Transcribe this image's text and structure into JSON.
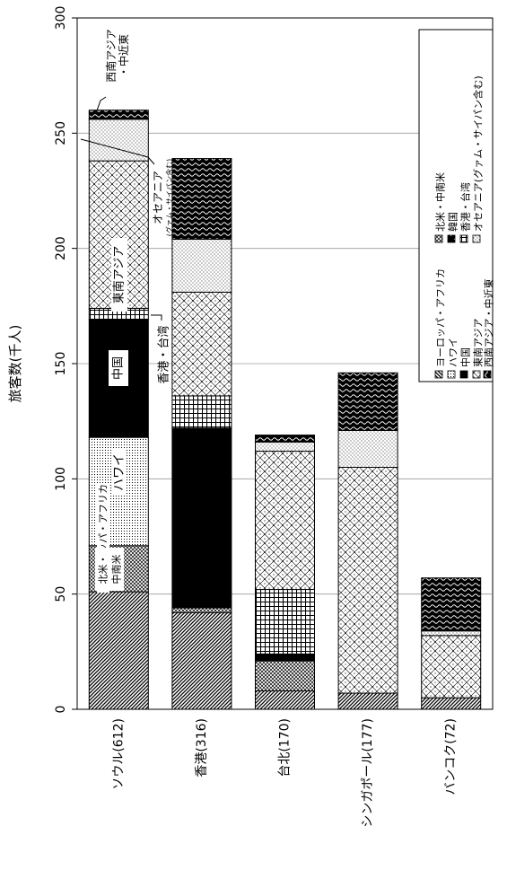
{
  "chart_data": {
    "type": "bar",
    "stacked": true,
    "orientation": "horizontal",
    "ylabel": "旅客数(千人)",
    "ylim": [
      0,
      300
    ],
    "yticks": [
      0,
      50,
      100,
      150,
      200,
      250,
      300
    ],
    "grid": true,
    "legend_position": "top-right",
    "categories": [
      "ソウル(612)",
      "香港(316)",
      "台北(170)",
      "シンガポール(177)",
      "バンコク(72)"
    ],
    "series": [
      {
        "name": "ヨーロッパ・アフリカ",
        "pattern": "diag",
        "values": [
          51,
          42,
          8,
          7,
          5
        ]
      },
      {
        "name": "北米・中南米",
        "pattern": "cross",
        "values": [
          20,
          2,
          13,
          0,
          0
        ]
      },
      {
        "name": "ハワイ",
        "pattern": "fine",
        "values": [
          47,
          0,
          0,
          0,
          0
        ]
      },
      {
        "name": "韓国",
        "pattern": "black",
        "values": [
          0,
          78,
          0,
          0,
          0
        ]
      },
      {
        "name": "中国",
        "pattern": "black",
        "values": [
          51,
          0,
          3,
          0,
          0
        ]
      },
      {
        "name": "香港・台湾",
        "pattern": "grid",
        "values": [
          5,
          14,
          28,
          0,
          0
        ]
      },
      {
        "name": "東南アジア",
        "pattern": "diamond",
        "values": [
          64,
          45,
          60,
          98,
          27
        ]
      },
      {
        "name": "オセアニア(グァム・サイパン含む)",
        "pattern": "dots",
        "values": [
          18,
          23,
          4,
          16,
          2
        ]
      },
      {
        "name": "西南アジア・中近東",
        "pattern": "wave",
        "values": [
          4,
          35,
          3,
          25,
          23
        ]
      }
    ],
    "in_bar_labels": {
      "europe_africa": "ヨーロッパ・アフリカ",
      "north_america_l1": "北米・",
      "north_america_l2": "中南米",
      "hawaii": "ハワイ",
      "china": "中国",
      "east_asia": "東南アジア"
    },
    "annotations": {
      "hongkong_taiwan": "香港・台湾",
      "oceania": "オセアニア",
      "oceania_sub": "(グァム・サイパン含む)",
      "west_asia_l1": "西南アジア",
      "west_asia_l2": "・中近東"
    },
    "legend_labels": {
      "europe_africa": "ヨーロッパ・アフリカ",
      "north_america": "北米・中南米",
      "hawaii": "ハワイ",
      "korea": "韓国",
      "china": "中国",
      "hongkong_taiwan": "香港・台湾",
      "east_asia": "東南アジア",
      "oceania": "オセアニア(グァム・サイパン含む)",
      "west_asia": "西南アジア・中近東"
    }
  }
}
